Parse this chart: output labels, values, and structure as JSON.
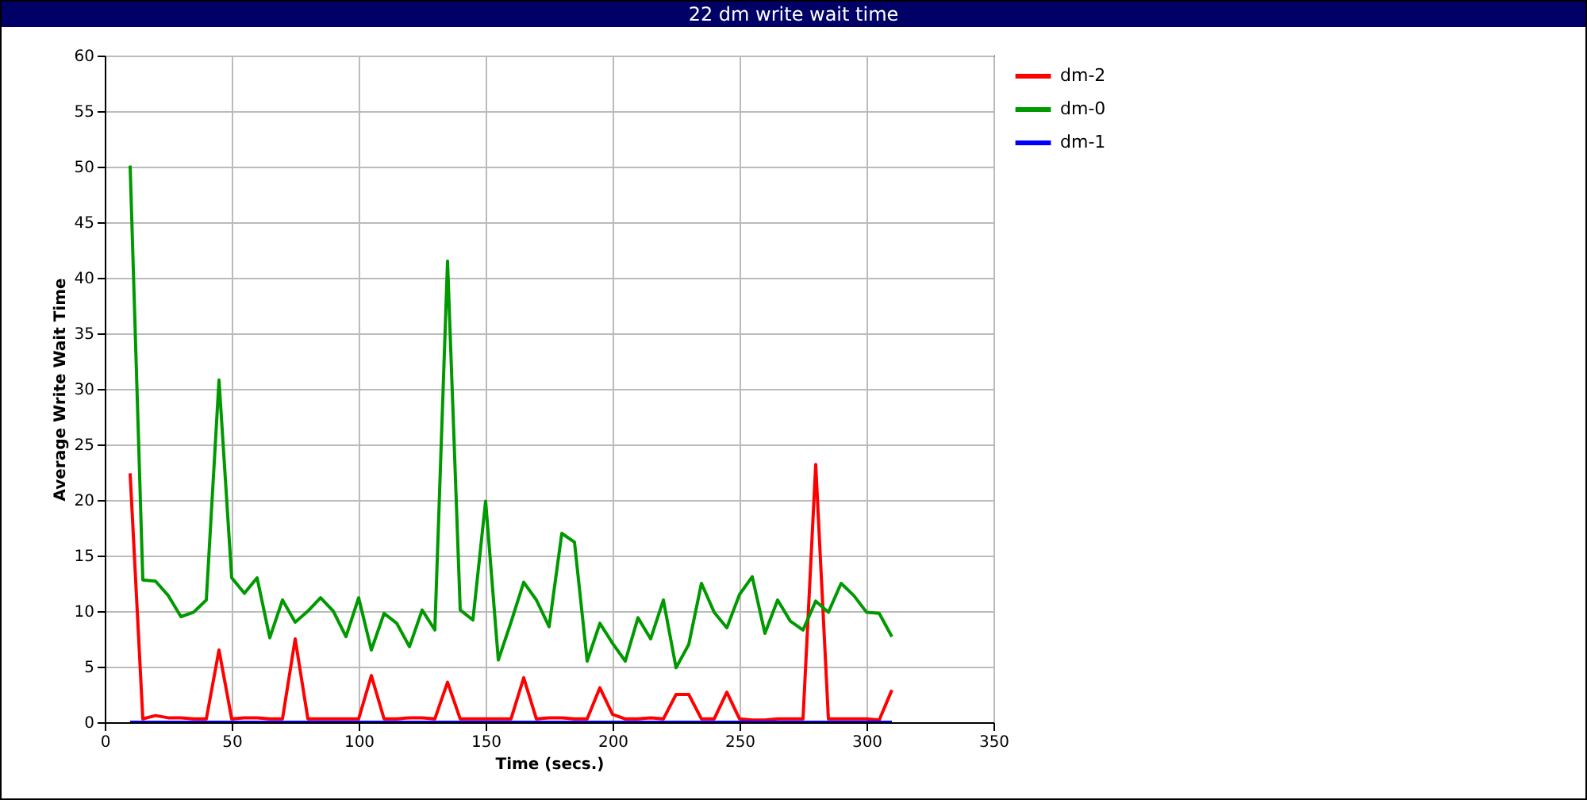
{
  "chart_data": {
    "type": "line",
    "title": "22 dm write wait time",
    "xlabel": "Time (secs.)",
    "ylabel": "Average Write Wait Time",
    "x": [
      10,
      15,
      20,
      25,
      30,
      35,
      40,
      45,
      50,
      55,
      60,
      65,
      70,
      75,
      80,
      85,
      90,
      95,
      100,
      105,
      110,
      115,
      120,
      125,
      130,
      135,
      140,
      145,
      150,
      155,
      160,
      165,
      170,
      175,
      180,
      185,
      190,
      195,
      200,
      205,
      210,
      215,
      220,
      225,
      230,
      235,
      240,
      245,
      250,
      255,
      260,
      265,
      270,
      275,
      280,
      285,
      290,
      295,
      300,
      305,
      310
    ],
    "series": [
      {
        "name": "dm-2",
        "color": "#ff0000",
        "values": [
          22.4,
          0.3,
          0.6,
          0.4,
          0.4,
          0.3,
          0.3,
          6.5,
          0.3,
          0.4,
          0.4,
          0.3,
          0.3,
          7.5,
          0.3,
          0.3,
          0.3,
          0.3,
          0.3,
          4.2,
          0.3,
          0.3,
          0.4,
          0.4,
          0.3,
          3.6,
          0.3,
          0.3,
          0.3,
          0.3,
          0.3,
          4.0,
          0.3,
          0.4,
          0.4,
          0.3,
          0.3,
          3.1,
          0.7,
          0.3,
          0.3,
          0.4,
          0.3,
          2.5,
          2.5,
          0.3,
          0.3,
          2.7,
          0.3,
          0.2,
          0.2,
          0.3,
          0.3,
          0.3,
          23.2,
          0.3,
          0.3,
          0.3,
          0.3,
          0.2,
          2.9
        ]
      },
      {
        "name": "dm-0",
        "color": "#009900",
        "values": [
          50.1,
          12.8,
          12.7,
          11.4,
          9.5,
          9.9,
          11.0,
          30.8,
          13.0,
          11.6,
          13.0,
          7.6,
          11.0,
          9.0,
          10.0,
          11.2,
          10.0,
          7.7,
          11.2,
          6.5,
          9.8,
          8.9,
          6.8,
          10.1,
          8.3,
          41.5,
          10.1,
          9.2,
          19.9,
          5.6,
          9.0,
          12.6,
          11.0,
          8.6,
          17.0,
          16.2,
          5.5,
          8.9,
          7.1,
          5.5,
          9.4,
          7.5,
          11.0,
          4.9,
          7.0,
          12.5,
          9.9,
          8.5,
          11.5,
          13.1,
          8.0,
          11.0,
          9.1,
          8.3,
          10.9,
          9.9,
          12.5,
          11.4,
          9.9,
          9.8,
          7.7
        ]
      },
      {
        "name": "dm-1",
        "color": "#0000ff",
        "values": [
          0,
          0,
          0,
          0,
          0,
          0,
          0,
          0,
          0,
          0,
          0,
          0,
          0,
          0,
          0,
          0,
          0,
          0,
          0,
          0,
          0,
          0,
          0,
          0,
          0,
          0,
          0,
          0,
          0,
          0,
          0,
          0,
          0,
          0,
          0,
          0,
          0,
          0,
          0,
          0,
          0,
          0,
          0,
          0,
          0,
          0,
          0,
          0,
          0,
          0,
          0,
          0,
          0,
          0,
          0,
          0,
          0,
          0,
          0,
          0,
          0
        ]
      }
    ],
    "xlim": [
      0,
      350
    ],
    "xticks": [
      0,
      50,
      100,
      150,
      200,
      250,
      300,
      350
    ],
    "ylim": [
      0,
      60
    ],
    "yticks": [
      0,
      5,
      10,
      15,
      20,
      25,
      30,
      35,
      40,
      45,
      50,
      55,
      60
    ],
    "grid": true,
    "legend": "top right"
  }
}
